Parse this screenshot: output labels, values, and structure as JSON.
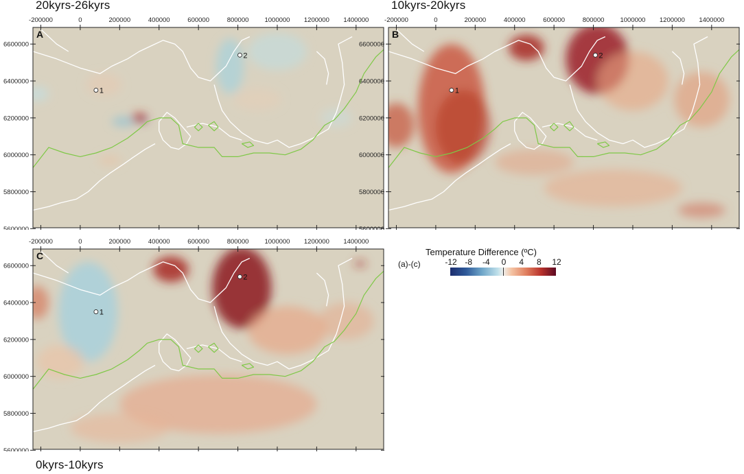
{
  "panels": [
    {
      "id": "A",
      "title": "20kyrs-26kyrs",
      "theme": "cool"
    },
    {
      "id": "B",
      "title": "10kyrs-20kyrs",
      "theme": "warm"
    },
    {
      "id": "C",
      "title": "0kyrs-10kyrs",
      "theme": "mixed"
    }
  ],
  "x_ticks": [
    "-200000",
    "0",
    "200000",
    "400000",
    "600000",
    "800000",
    "1000000",
    "1200000",
    "1400000"
  ],
  "y_ticks": [
    "6600000",
    "6400000",
    "6200000",
    "6000000",
    "5800000",
    "5600000"
  ],
  "sites": [
    {
      "label": "1"
    },
    {
      "label": "2"
    }
  ],
  "legend": {
    "title": "Temperature Difference (ºC)",
    "subtitle": "(a)-(c)",
    "ticks": [
      "-12",
      "-8",
      "-4",
      "0",
      "4",
      "8",
      "12"
    ],
    "colors": [
      "#1c2d6e",
      "#2f5a9a",
      "#6fa6c9",
      "#bfe0ea",
      "#f0f0ee",
      "#f4c3a3",
      "#e07f5f",
      "#b8322c",
      "#5c0a22"
    ]
  },
  "colors": {
    "background": "#d9d2c0",
    "coast": "#ffffff",
    "ice_margin": "#7ec846"
  }
}
